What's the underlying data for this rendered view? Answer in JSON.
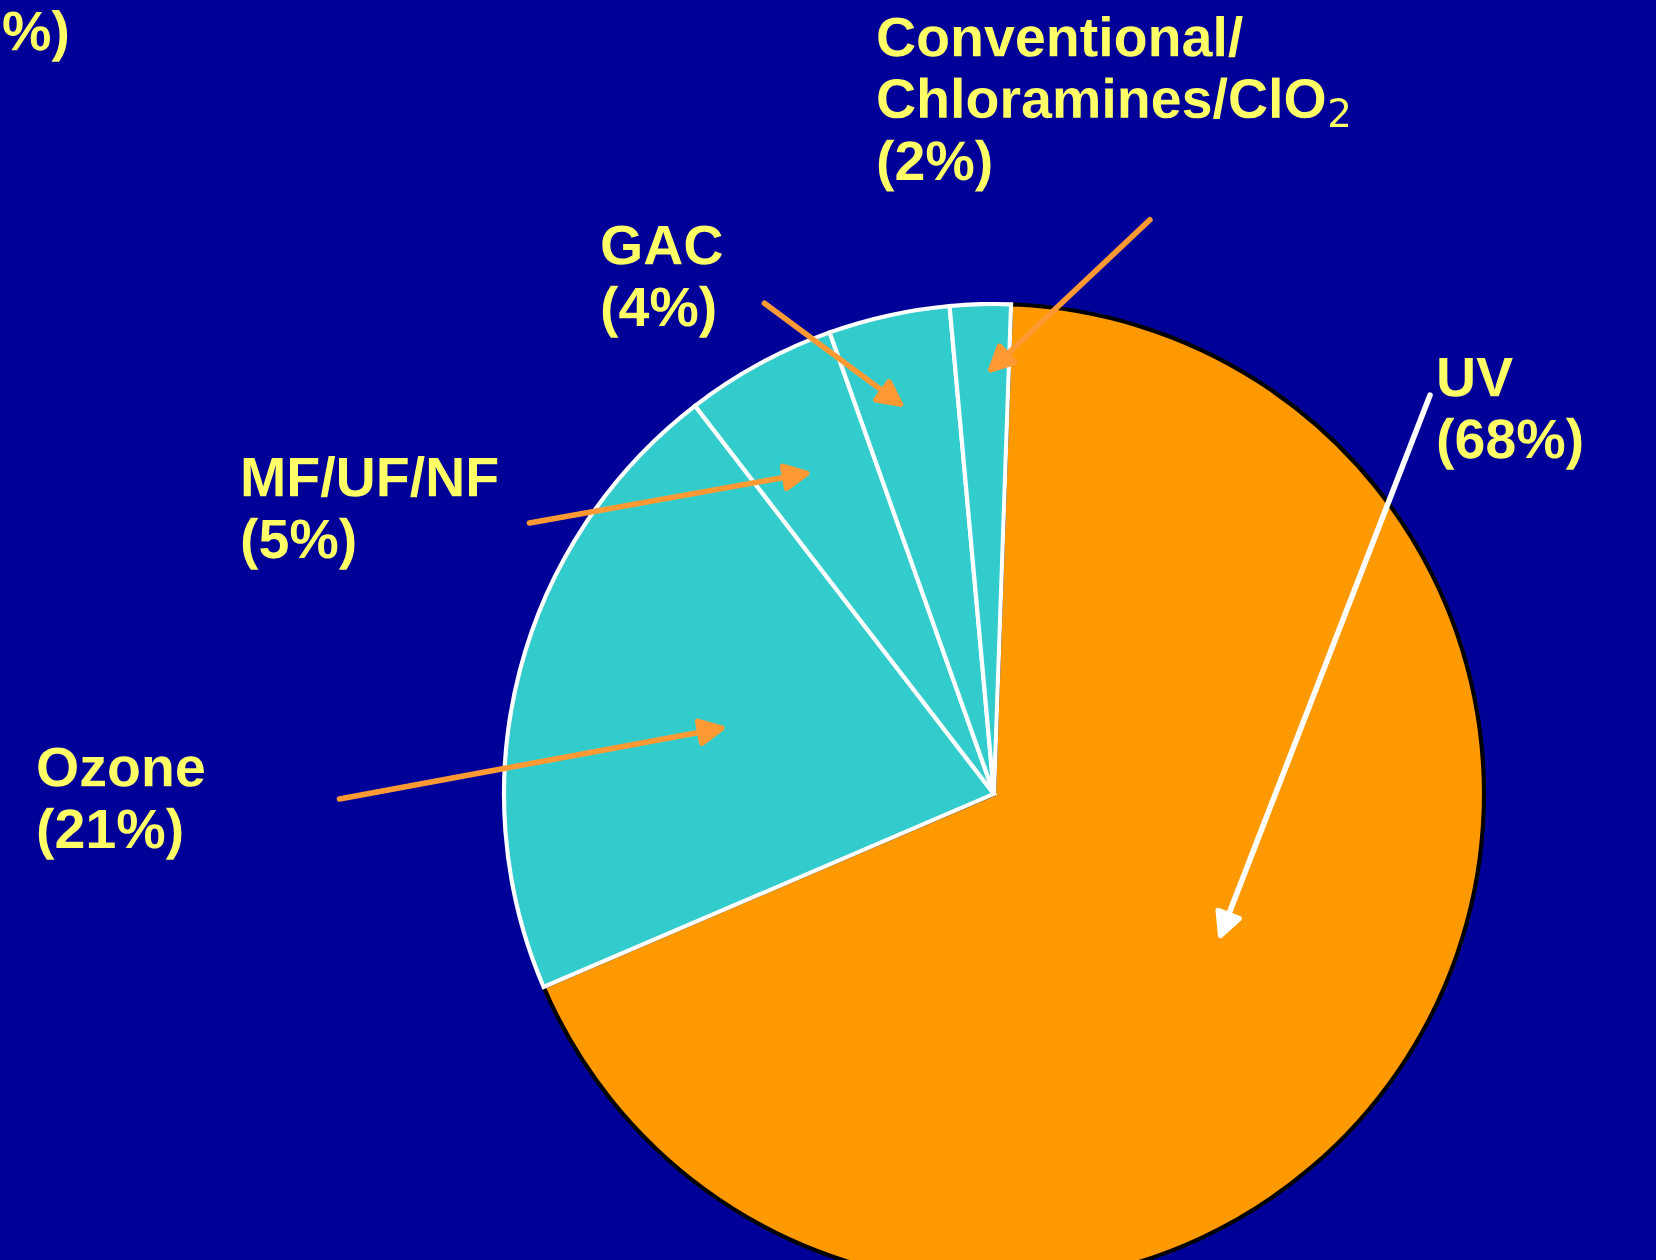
{
  "chart_data": {
    "type": "pie",
    "title": "%)",
    "categories": [
      "UV",
      "Ozone",
      "MF/UF/NF",
      "GAC",
      "Conventional/\nChloramines/ClO$_{2}$"
    ],
    "values": [
      68,
      21,
      5,
      4,
      2
    ],
    "value_labels": [
      "(68%)",
      "(21%)",
      "(5%)",
      "(4%)",
      "(2%)"
    ],
    "colors": [
      "#ff9900",
      "#33cccc",
      "#33cccc",
      "#33cccc",
      "#33cccc"
    ]
  }
}
